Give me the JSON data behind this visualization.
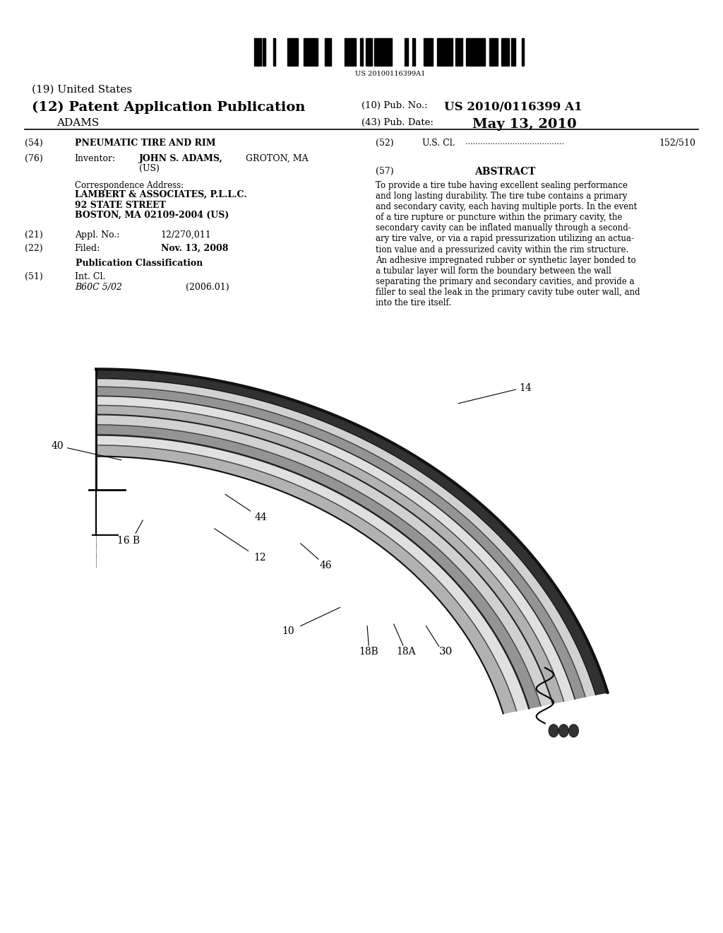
{
  "background_color": "#ffffff",
  "page_width": 10.24,
  "page_height": 13.2,
  "barcode_text": "US 20100116399A1",
  "title_19": "(19) United States",
  "title_12": "(12) Patent Application Publication",
  "title_name": "ADAMS",
  "pub_no_label": "(10) Pub. No.:",
  "pub_no_value": "US 2010/0116399 A1",
  "pub_date_label": "(43) Pub. Date:",
  "pub_date_value": "May 13, 2010",
  "field54_label": "(54)",
  "field54_value": "PNEUMATIC TIRE AND RIM",
  "field52_label": "(52)",
  "field52_value": "U.S. Cl.",
  "field52_dots": "152/510",
  "field76_label": "(76)",
  "field76_key": "Inventor:",
  "field57_label": "(57)",
  "field57_title": "ABSTRACT",
  "corr_addr_label": "Correspondence Address:",
  "corr_addr_lines": [
    "LAMBERT & ASSOCIATES, P.L.L.C.",
    "92 STATE STREET",
    "BOSTON, MA 02109-2004 (US)"
  ],
  "field21_label": "(21)",
  "field21_key": "Appl. No.:",
  "field21_value": "12/270,011",
  "field22_label": "(22)",
  "field22_key": "Filed:",
  "field22_value": "Nov. 13, 2008",
  "pub_class_title": "Publication Classification",
  "field51_label": "(51)",
  "field51_key": "Int. Cl.",
  "field51_class": "B60C 5/02",
  "field51_year": "(2006.01)",
  "abstract_lines": [
    "To provide a tire tube having excellent sealing performance",
    "and long lasting durability. The tire tube contains a primary",
    "and secondary cavity, each having multiple ports. In the event",
    "of a tire rupture or puncture within the primary cavity, the",
    "secondary cavity can be inflated manually through a second-",
    "ary tire valve, or via a rapid pressurization utilizing an actua-",
    "tion value and a pressurized cavity within the rim structure.",
    "An adhesive impregnated rubber or synthetic layer bonded to",
    "a tubular layer will form the boundary between the wall",
    "separating the primary and secondary cavities, and provide a",
    "filler to seal the leak in the primary cavity tube outer wall, and",
    "into the tire itself."
  ]
}
